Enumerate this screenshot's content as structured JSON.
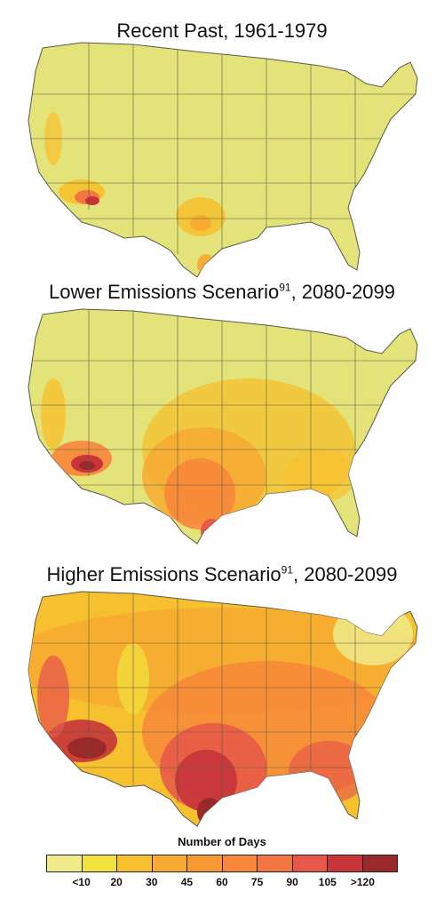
{
  "panels": [
    {
      "title": "Recent Past, 1961-1979",
      "superscript": ""
    },
    {
      "title_before": "Lower Emissions Scenario",
      "superscript": "91",
      "title_after": ", 2080-2099"
    },
    {
      "title_before": "Higher Emissions Scenario",
      "superscript": "91",
      "title_after": ", 2080-2099"
    }
  ],
  "legend": {
    "title": "Number of Days",
    "colors": [
      "#f0ea8a",
      "#f2e23c",
      "#f6c02e",
      "#f7a931",
      "#f89934",
      "#f7853a",
      "#f37542",
      "#e7574a",
      "#c7343a",
      "#9a2a2a"
    ],
    "labels": [
      "<10",
      "20",
      "30",
      "45",
      "60",
      "75",
      "90",
      "105",
      ">120"
    ]
  },
  "colors": {
    "base": "#e3e37a",
    "border": "#5a5a4a"
  }
}
